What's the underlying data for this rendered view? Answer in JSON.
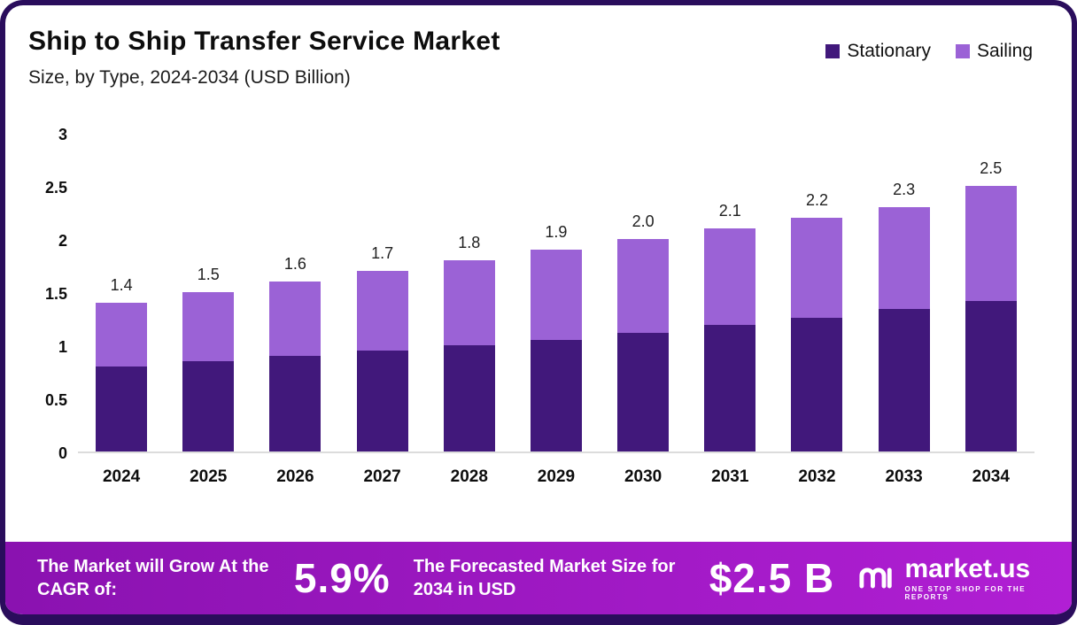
{
  "chart": {
    "title": "Ship to Ship Transfer Service Market",
    "subtitle": "Size, by Type, 2024-2034 (USD Billion)"
  },
  "chart_data": {
    "type": "bar",
    "stacked": true,
    "title": "Ship to Ship Transfer Service Market Size, by Type, 2024-2034 (USD Billion)",
    "categories": [
      "2024",
      "2025",
      "2026",
      "2027",
      "2028",
      "2029",
      "2030",
      "2031",
      "2032",
      "2033",
      "2034"
    ],
    "series": [
      {
        "name": "Stationary",
        "values": [
          0.8,
          0.85,
          0.9,
          0.95,
          1.0,
          1.05,
          1.12,
          1.19,
          1.26,
          1.34,
          1.42
        ]
      },
      {
        "name": "Sailing",
        "values": [
          0.6,
          0.65,
          0.7,
          0.75,
          0.8,
          0.85,
          0.88,
          0.91,
          0.94,
          0.96,
          1.08
        ]
      }
    ],
    "totals": [
      1.4,
      1.5,
      1.6,
      1.7,
      1.8,
      1.9,
      2.0,
      2.1,
      2.2,
      2.3,
      2.5
    ],
    "total_labels": [
      "1.4",
      "1.5",
      "1.6",
      "1.7",
      "1.8",
      "1.9",
      "2.0",
      "2.1",
      "2.2",
      "2.3",
      "2.5"
    ],
    "ylim": [
      0,
      3
    ],
    "y_ticks": [
      3,
      2.5,
      2,
      1.5,
      1,
      0.5,
      0
    ],
    "y_tick_labels": [
      "3",
      "2.5",
      "2",
      "1.5",
      "1",
      "0.5",
      "0"
    ],
    "xlabel": "",
    "ylabel": "",
    "grid": false,
    "legend_position": "top-right"
  },
  "banner": {
    "cagr_label": "The Market will Grow At the CAGR of:",
    "cagr_value": "5.9%",
    "forecast_label": "The Forecasted Market Size for 2034 in USD",
    "forecast_value": "$2.5 B",
    "logo_text": "market.us",
    "logo_tagline": "ONE STOP SHOP FOR THE REPORTS"
  },
  "colors": {
    "stationary": "#41187b",
    "sailing": "#9b62d6",
    "frame": "#2a0d5c",
    "banner_gradient_start": "#8a12b0",
    "banner_gradient_end": "#b11fd4",
    "baseline": "#dcdcdc"
  }
}
